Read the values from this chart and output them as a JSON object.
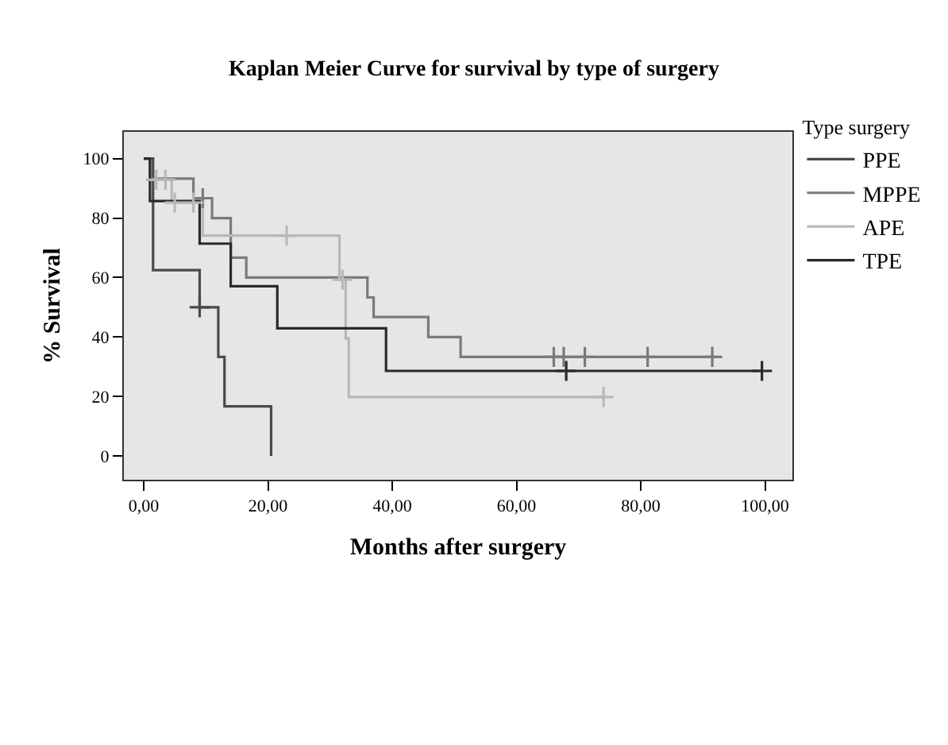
{
  "chart_data": {
    "type": "step",
    "title": "Kaplan Meier Curve for survival by type of surgery",
    "xlabel": "Months after surgery",
    "ylabel": "% Survival",
    "legend_title": "Type surgery",
    "legend": "top right",
    "grid": false,
    "xlim": [
      -3.2,
      104.4
    ],
    "ylim": [
      -8,
      109
    ],
    "xticks": [
      {
        "value": 0,
        "label": "0,00"
      },
      {
        "value": 20,
        "label": "20,00"
      },
      {
        "value": 40,
        "label": "40,00"
      },
      {
        "value": 60,
        "label": "60,00"
      },
      {
        "value": 80,
        "label": "80,00"
      },
      {
        "value": 100,
        "label": "100,00"
      }
    ],
    "yticks": [
      0,
      20,
      40,
      60,
      80,
      100
    ],
    "series": [
      {
        "name": "PPE",
        "color": "#4a4a4a",
        "x": [
          0,
          1.5,
          9,
          12,
          13,
          20.5
        ],
        "values": [
          100,
          62.5,
          50,
          33.3,
          16.7,
          0
        ]
      },
      {
        "name": "MPPE",
        "color": "#7a7a7a",
        "x": [
          0,
          1,
          8,
          11,
          14,
          16.5,
          36,
          37,
          45.8,
          51,
          92
        ],
        "values": [
          100,
          93.3,
          86.7,
          80,
          66.7,
          60,
          53.3,
          46.7,
          40,
          33.3,
          33.3
        ]
      },
      {
        "name": "APE",
        "color": "#b8b8b8",
        "x": [
          0,
          1,
          4.5,
          9.5,
          31.5,
          32.5,
          33,
          74
        ],
        "values": [
          100,
          92.9,
          85.2,
          74.1,
          59.3,
          39.5,
          19.8,
          19.8
        ]
      },
      {
        "name": "TPE",
        "color": "#2a2a2a",
        "x": [
          0,
          1,
          9,
          14,
          21.5,
          39,
          99.5
        ],
        "values": [
          100,
          85.7,
          71.4,
          57.1,
          42.9,
          28.6,
          28.6
        ]
      },
      {
        "type": "scatter",
        "marker": "cross",
        "color": "#4a4a4a",
        "x": [
          9
        ],
        "values": [
          50
        ]
      },
      {
        "type": "scatter",
        "marker": "cross",
        "color": "#7a7a7a",
        "x": [
          9.5,
          66,
          67.6,
          71,
          81.1,
          91.5
        ],
        "values": [
          86.7,
          33.3,
          33.3,
          33.3,
          33.3,
          33.3
        ]
      },
      {
        "type": "scatter",
        "marker": "cross",
        "color": "#b8b8b8",
        "x": [
          2,
          3.5,
          5,
          8,
          23,
          32,
          74
        ],
        "values": [
          92.9,
          92.9,
          85.2,
          85.2,
          74.1,
          59.3,
          19.8
        ]
      },
      {
        "type": "scatter",
        "marker": "cross",
        "color": "#2a2a2a",
        "x": [
          68,
          99.5
        ],
        "values": [
          28.6,
          28.6
        ]
      }
    ]
  }
}
